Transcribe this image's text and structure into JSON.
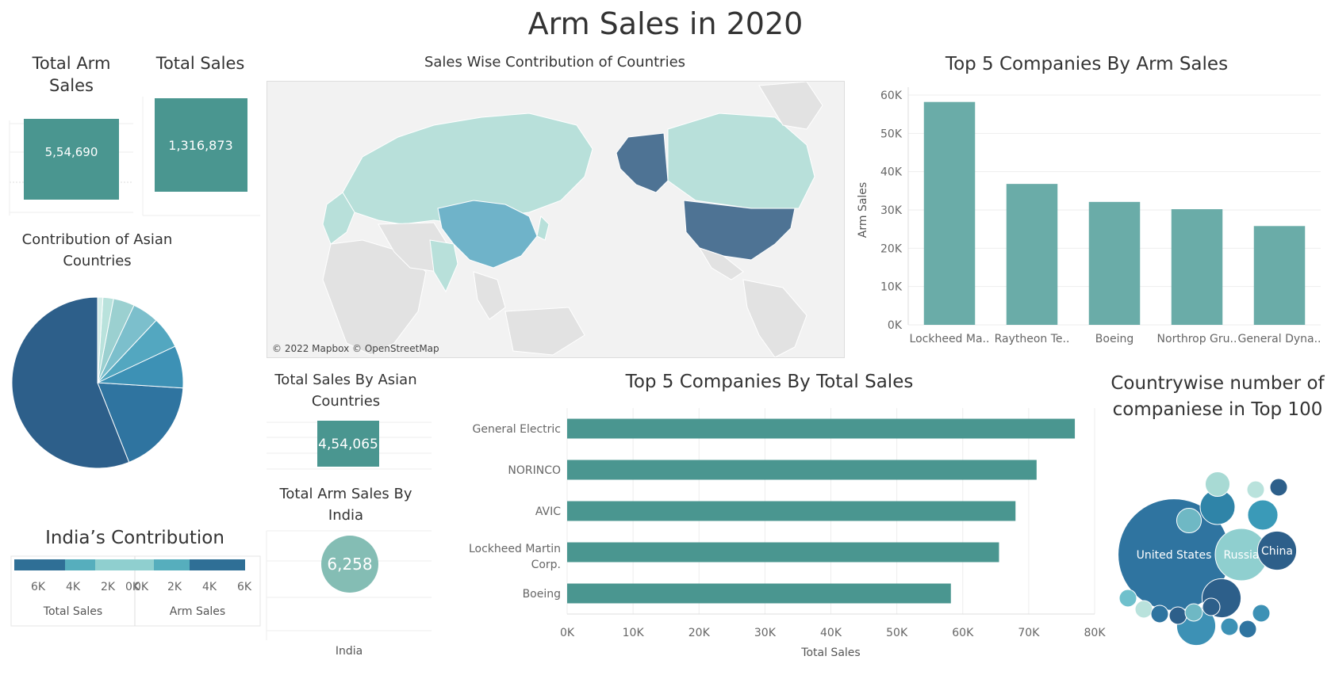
{
  "dashboard": {
    "title": "Arm Sales in 2020"
  },
  "kpi": {
    "total_arm_sales": {
      "title": "Total Arm Sales",
      "value": "5,54,690"
    },
    "total_sales": {
      "title": "Total Sales",
      "value": "1,316,873"
    },
    "asian_total_sales": {
      "title": "Total Sales By Asian Countries",
      "value": "4,54,065"
    },
    "india_arm_sales": {
      "title": "Total Arm Sales By India",
      "value": "6,258",
      "axis_label": "India"
    }
  },
  "map": {
    "title": "Sales Wise Contribution of Countries",
    "attribution": "© 2022 Mapbox © OpenStreetMap",
    "colors": {
      "high": "#4e7394",
      "mid": "#6fb3c9",
      "low": "#b8e0da",
      "none": "#e2e2e2",
      "water": "#f2f2f2"
    }
  },
  "chart_data": [
    {
      "id": "top5_arm_sales",
      "type": "bar",
      "title": "Top 5 Companies By Arm Sales",
      "ylabel": "Arm Sales",
      "categories": [
        "Lockheed Ma..",
        "Raytheon Te..",
        "Boeing",
        "Northrop Gru..",
        "General Dyna.."
      ],
      "values": [
        58200,
        36800,
        32100,
        30200,
        25800
      ],
      "ylim": [
        0,
        60000
      ],
      "yticks": [
        "0K",
        "10K",
        "20K",
        "30K",
        "40K",
        "50K",
        "60K"
      ],
      "grid": true,
      "color": "#6aaca8"
    },
    {
      "id": "top5_total_sales",
      "type": "bar",
      "orientation": "horizontal",
      "title": "Top 5 Companies By Total Sales",
      "xlabel": "Total Sales",
      "categories": [
        "General Electric",
        "NORINCO",
        "AVIC",
        "Lockheed Martin Corp.",
        "Boeing"
      ],
      "values": [
        77000,
        71200,
        68000,
        65500,
        58200
      ],
      "xlim": [
        0,
        80000
      ],
      "xticks": [
        "0K",
        "10K",
        "20K",
        "30K",
        "40K",
        "50K",
        "60K",
        "70K",
        "80K"
      ],
      "grid": true,
      "color": "#4a9690"
    },
    {
      "id": "asian_contribution",
      "type": "pie",
      "title": "Contribution of Asian Countries",
      "values": [
        56,
        18,
        8,
        6,
        5,
        4,
        2,
        1
      ],
      "colors": [
        "#2d5f8a",
        "#2f74a0",
        "#3d91b5",
        "#53a7c0",
        "#7cbfcc",
        "#9bd0d0",
        "#b9e2dc",
        "#d6eee9"
      ]
    },
    {
      "id": "india_contribution",
      "type": "bar",
      "title": "India’s Contribution",
      "panels": [
        "Total Sales",
        "Arm Sales"
      ],
      "ticks_left": [
        "6K",
        "4K",
        "2K",
        "0K"
      ],
      "ticks_right": [
        "0K",
        "2K",
        "4K",
        "6K"
      ],
      "segment_colors": [
        "#2f6f96",
        "#56aebd",
        "#8fcfcf"
      ]
    },
    {
      "id": "country_company_count",
      "type": "bubble",
      "title": "Countrywise number of companiese in Top 100",
      "bubbles": [
        {
          "label": "United States",
          "value": 41,
          "color": "#2f74a0"
        },
        {
          "label": "Russia",
          "value": 9,
          "color": "#8fcfcf"
        },
        {
          "label": "China",
          "value": 5,
          "color": "#2d5f8a"
        },
        {
          "label": "",
          "value": 5,
          "color": "#2d5f8a"
        },
        {
          "label": "",
          "value": 5,
          "color": "#3d91b5"
        },
        {
          "label": "",
          "value": 4,
          "color": "#2f84a8"
        },
        {
          "label": "",
          "value": 3,
          "color": "#3a9ab8"
        },
        {
          "label": "",
          "value": 2,
          "color": "#6fb8c4"
        },
        {
          "label": "",
          "value": 2,
          "color": "#a8dad4"
        },
        {
          "label": "",
          "value": 1,
          "color": "#b9e2dc"
        },
        {
          "label": "",
          "value": 1,
          "color": "#2d5f8a"
        },
        {
          "label": "",
          "value": 1,
          "color": "#6fc0cc"
        },
        {
          "label": "",
          "value": 1,
          "color": "#b9e2dc"
        },
        {
          "label": "",
          "value": 1,
          "color": "#2f74a0"
        },
        {
          "label": "",
          "value": 1,
          "color": "#2d5f8a"
        },
        {
          "label": "",
          "value": 1,
          "color": "#6fb8c4"
        },
        {
          "label": "",
          "value": 1,
          "color": "#2d5f8a"
        },
        {
          "label": "",
          "value": 1,
          "color": "#3d91b5"
        },
        {
          "label": "",
          "value": 1,
          "color": "#2f74a0"
        },
        {
          "label": "",
          "value": 1,
          "color": "#3d91b5"
        }
      ]
    }
  ]
}
